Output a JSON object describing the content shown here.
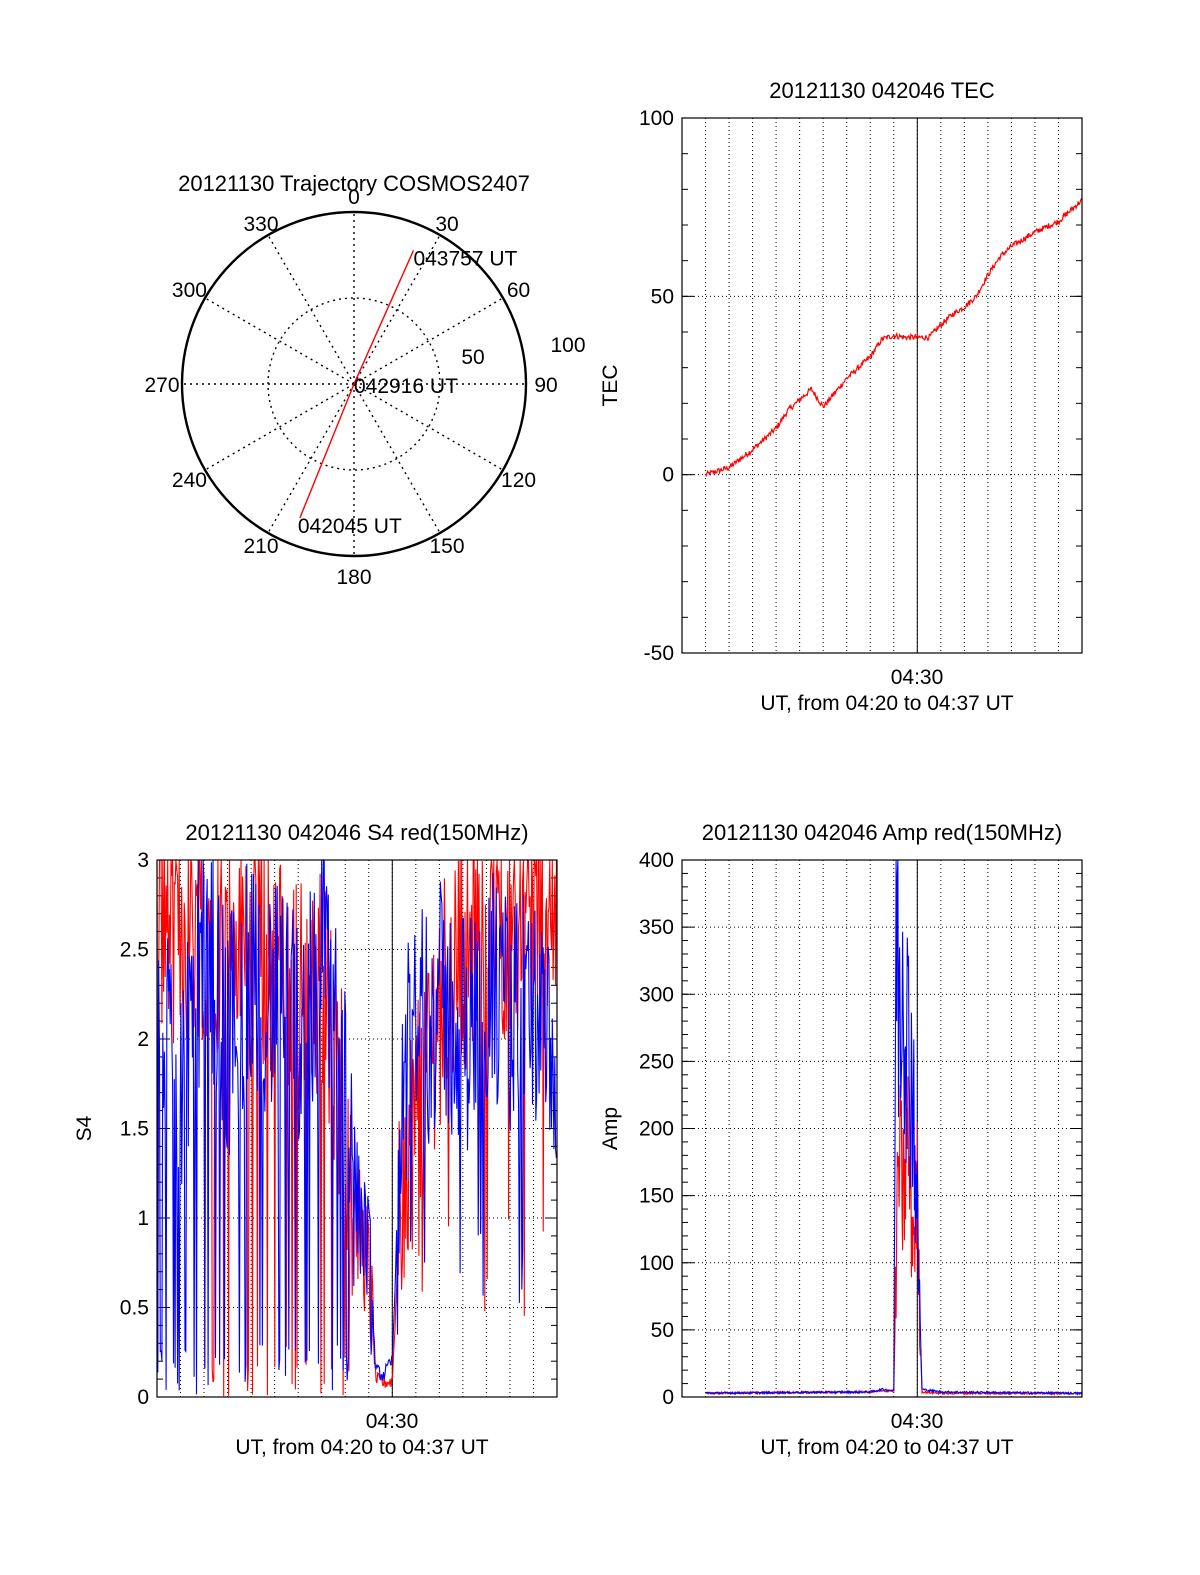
{
  "chart_data": [
    {
      "type": "polar",
      "title": "20121130 Trajectory COSMOS2407",
      "angle_labels": [
        "0",
        "30",
        "60",
        "90",
        "120",
        "150",
        "180",
        "210",
        "240",
        "270",
        "300",
        "330"
      ],
      "radial_labels": [
        "50",
        "100"
      ],
      "rlim": [
        0,
        100
      ],
      "grid": true,
      "series": [
        {
          "color": "#ff0000",
          "points": [
            {
              "az": 202,
              "r": 84,
              "time": "042045 UT"
            },
            {
              "az": 0,
              "r": 0,
              "time": "042916 UT"
            },
            {
              "az": 24,
              "r": 85,
              "time": "043757 UT"
            }
          ]
        }
      ],
      "annotations": [
        "042045 UT",
        "042916 UT",
        "043757 UT"
      ]
    },
    {
      "type": "line",
      "title": "20121130 042046 TEC",
      "ylabel": "TEC",
      "xlabel": "UT, from 04:20 to 04:37 UT",
      "ylim": [
        -50,
        100
      ],
      "yticks": [
        "-50",
        "0",
        "50",
        "100"
      ],
      "xlim_minutes": [
        0,
        17
      ],
      "xtick_label": {
        "value": 10,
        "label": "04:30"
      },
      "grid": true,
      "series": [
        {
          "color": "#ff0000",
          "x": [
            1,
            2,
            3,
            4,
            4.5,
            5,
            5.5,
            6,
            6.5,
            7,
            7.5,
            8,
            8.5,
            9,
            9.5,
            10,
            10.5,
            11,
            11.5,
            12,
            12.5,
            13,
            13.5,
            14,
            15,
            16,
            17
          ],
          "y": [
            0,
            2,
            7,
            13,
            18,
            21,
            24,
            19,
            23,
            27,
            30,
            33,
            38,
            39,
            38.5,
            38.5,
            38.5,
            42,
            45,
            47,
            50,
            56,
            61,
            64,
            68,
            71,
            77
          ]
        }
      ]
    },
    {
      "type": "line",
      "title": "20121130 042046 S4 red(150MHz)",
      "ylabel": "S4",
      "xlabel": "UT, from 04:20 to 04:37 UT",
      "ylim": [
        0,
        3
      ],
      "yticks": [
        "0",
        "0.5",
        "1",
        "1.5",
        "2",
        "2.5",
        "3"
      ],
      "xlim_minutes": [
        0,
        17
      ],
      "xtick_label": {
        "value": 10,
        "label": "04:30"
      },
      "grid": true,
      "series": [
        {
          "color": "#ff0000",
          "x": [
            0,
            1,
            2,
            3,
            4,
            5,
            6,
            7,
            8,
            8.5,
            9,
            9.3,
            9.6,
            10,
            10.4,
            11,
            12,
            13,
            14,
            15,
            16,
            17
          ],
          "y": [
            2.8,
            2.6,
            2.7,
            2.5,
            2.6,
            2.4,
            2.2,
            2.3,
            1.6,
            1.0,
            0.7,
            0.1,
            0.08,
            0.09,
            1.2,
            1.6,
            2.2,
            2.5,
            2.6,
            2.7,
            2.8,
            2.7
          ]
        },
        {
          "color": "#0000ff",
          "x": [
            0,
            1,
            2,
            3,
            4,
            5,
            6,
            7,
            8,
            8.5,
            9,
            9.3,
            9.6,
            10,
            10.4,
            11,
            12,
            13,
            14,
            15,
            16,
            17
          ],
          "y": [
            2.2,
            1.8,
            2.6,
            2.0,
            2.4,
            2.2,
            2.0,
            2.5,
            1.8,
            1.1,
            0.8,
            0.15,
            0.12,
            0.2,
            1.7,
            2.0,
            2.2,
            2.0,
            2.3,
            2.1,
            2.2,
            1.6
          ]
        }
      ]
    },
    {
      "type": "line",
      "title": "20121130 042046 Amp red(150MHz)",
      "ylabel": "Amp",
      "xlabel": "UT, from 04:20 to 04:37 UT",
      "ylim": [
        0,
        400
      ],
      "yticks": [
        "0",
        "50",
        "100",
        "150",
        "200",
        "250",
        "300",
        "350",
        "400"
      ],
      "xlim_minutes": [
        0,
        17
      ],
      "xtick_label": {
        "value": 10,
        "label": "04:30"
      },
      "grid": true,
      "series": [
        {
          "color": "#ff0000",
          "x": [
            0,
            8,
            9,
            9.2,
            9.4,
            9.6,
            9.8,
            10,
            10.1,
            10.2,
            11,
            17
          ],
          "y": [
            2,
            3,
            4,
            180,
            150,
            190,
            120,
            150,
            60,
            3,
            2,
            2
          ]
        },
        {
          "color": "#0000ff",
          "x": [
            0,
            8,
            8.5,
            9,
            9.1,
            9.2,
            9.4,
            9.6,
            9.8,
            10,
            10.1,
            10.2,
            11,
            17
          ],
          "y": [
            2,
            3,
            5,
            4,
            395,
            300,
            340,
            260,
            240,
            130,
            70,
            5,
            3,
            2
          ]
        }
      ]
    }
  ]
}
